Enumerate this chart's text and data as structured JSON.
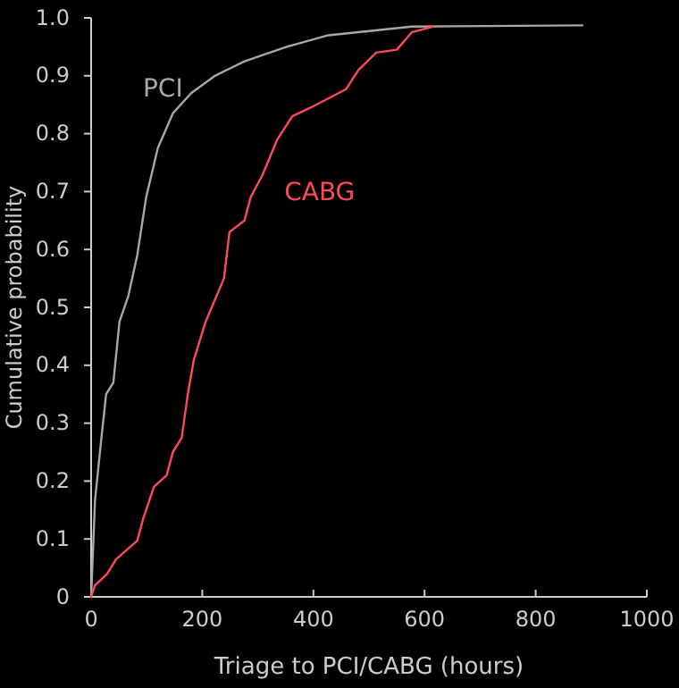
{
  "chart_data": {
    "type": "line",
    "xlabel": "Triage to PCI/CABG (hours)",
    "ylabel": "Cumulative probability",
    "xlim": [
      0,
      1000
    ],
    "xticks": [
      0,
      200,
      400,
      600,
      800,
      1000
    ],
    "ylim": [
      0,
      1
    ],
    "yticks": [
      0,
      0.1,
      0.2,
      0.3,
      0.4,
      0.5,
      0.6,
      0.7,
      0.8,
      0.9,
      {
        "value": 1,
        "label": "1.0"
      }
    ],
    "grid": false,
    "marker": "none",
    "line_style": "solid",
    "series": [
      {
        "name": "PCI",
        "color": "#a8a8a8",
        "x": [
          0,
          7,
          18,
          27,
          40,
          51,
          67,
          83,
          99,
          120,
          147,
          180,
          223,
          276,
          352,
          427,
          577,
          884
        ],
        "values": [
          0,
          0.167,
          0.27,
          0.35,
          0.37,
          0.475,
          0.52,
          0.59,
          0.69,
          0.775,
          0.835,
          0.87,
          0.9,
          0.925,
          0.95,
          0.97,
          0.985,
          0.987
        ]
      },
      {
        "name": "CABG",
        "color": "#ff4a5a",
        "x": [
          0,
          7,
          29,
          45,
          83,
          94,
          113,
          136,
          147,
          163,
          174,
          185,
          206,
          217,
          239,
          249,
          276,
          287,
          309,
          335,
          362,
          395,
          459,
          481,
          513,
          550,
          577,
          615
        ],
        "values": [
          0,
          0.02,
          0.04,
          0.065,
          0.097,
          0.136,
          0.19,
          0.21,
          0.25,
          0.275,
          0.35,
          0.41,
          0.475,
          0.5,
          0.55,
          0.63,
          0.65,
          0.69,
          0.73,
          0.79,
          0.83,
          0.845,
          0.877,
          0.91,
          0.94,
          0.945,
          0.975,
          0.985
        ]
      }
    ]
  }
}
